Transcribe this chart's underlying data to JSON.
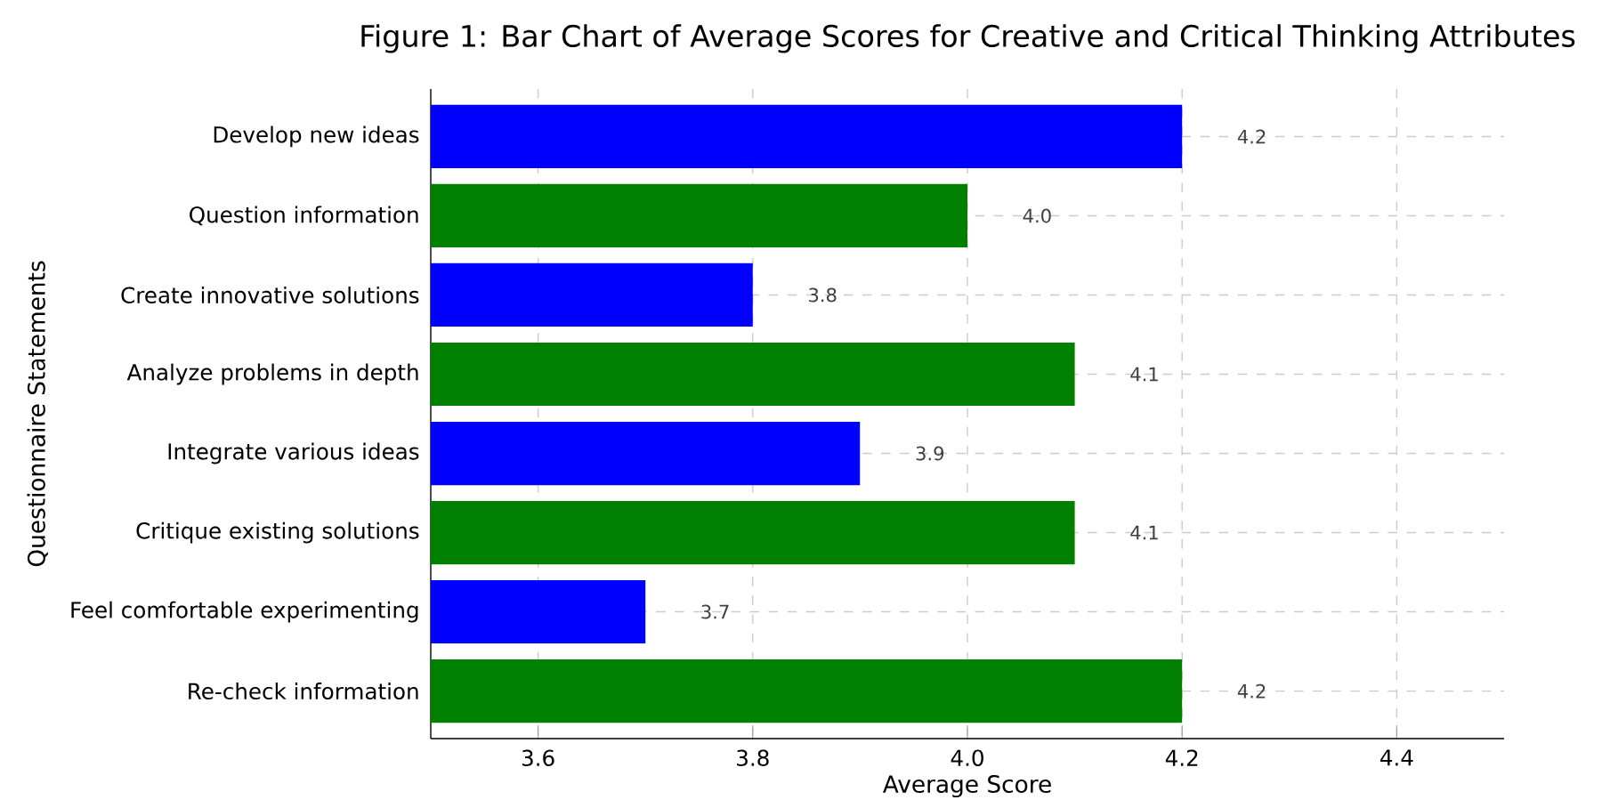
{
  "chart_data": {
    "type": "bar",
    "orientation": "horizontal",
    "title": "Figure 1: Bar Chart of Average Scores for Creative and Critical Thinking Attributes",
    "xlabel": "Average Score",
    "ylabel": "Questionnaire Statements",
    "categories": [
      "Develop new ideas",
      "Question information",
      "Create innovative solutions",
      "Analyze problems in depth",
      "Integrate various ideas",
      "Critique existing solutions",
      "Feel comfortable experimenting",
      "Re-check information"
    ],
    "values": [
      4.2,
      4.0,
      3.8,
      4.1,
      3.9,
      4.1,
      3.7,
      4.2
    ],
    "value_labels": [
      "4.2",
      "4.0",
      "3.8",
      "4.1",
      "3.9",
      "4.1",
      "3.7",
      "4.2"
    ],
    "colors": [
      "#0000ff",
      "#008000",
      "#0000ff",
      "#008000",
      "#0000ff",
      "#008000",
      "#0000ff",
      "#008000"
    ],
    "xlim": [
      3.5,
      4.5
    ],
    "xticks": [
      3.6,
      3.8,
      {
        "value": 4.0,
        "label": "4.0"
      },
      4.2,
      4.4
    ],
    "grid": true
  }
}
